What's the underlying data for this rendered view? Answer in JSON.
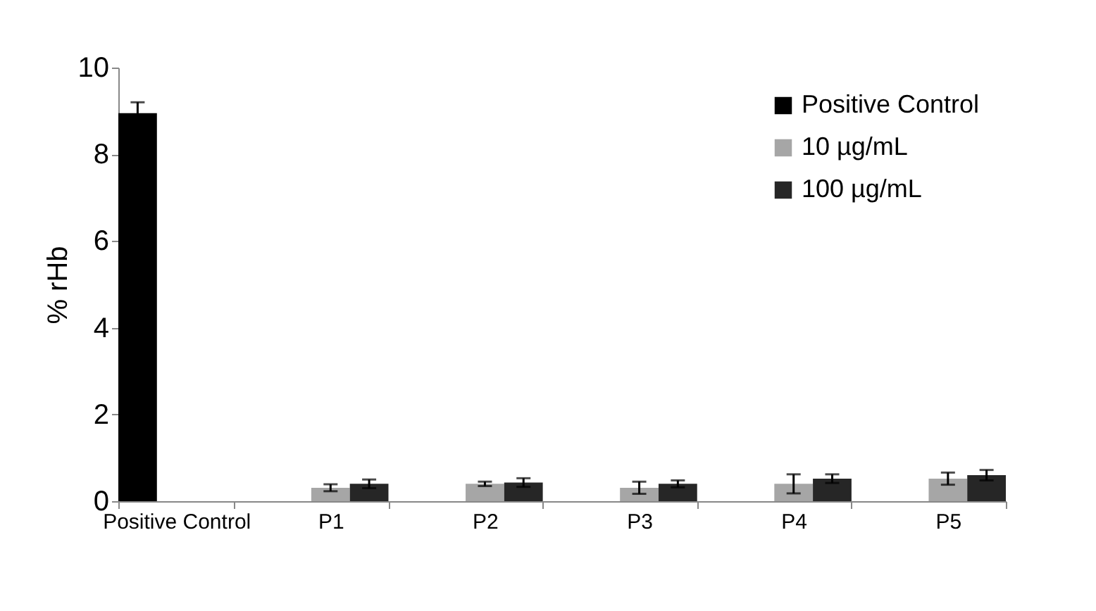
{
  "chart_data": {
    "type": "bar",
    "ylabel": "% rHb",
    "categories": [
      "Positive Control",
      "P1",
      "P2",
      "P3",
      "P4",
      "P5"
    ],
    "series": [
      {
        "name": "Positive Control",
        "color": "#000000",
        "values": [
          8.95,
          0,
          0,
          0,
          0,
          0
        ],
        "errors": [
          0.25,
          null,
          null,
          null,
          null,
          null
        ]
      },
      {
        "name": "10 µg/mL",
        "color": "#a6a6a6",
        "values": [
          0,
          0.31,
          0.4,
          0.31,
          0.4,
          0.52
        ],
        "errors": [
          null,
          0.08,
          0.05,
          0.14,
          0.22,
          0.14
        ]
      },
      {
        "name": "100 µg/mL",
        "color": "#262626",
        "values": [
          0,
          0.4,
          0.43,
          0.4,
          0.52,
          0.6
        ],
        "errors": [
          null,
          0.1,
          0.1,
          0.08,
          0.1,
          0.12
        ]
      }
    ],
    "ylim": [
      0,
      10
    ],
    "yticks": [
      0,
      2,
      4,
      6,
      8,
      10
    ],
    "grid": false,
    "legend": "top right"
  }
}
